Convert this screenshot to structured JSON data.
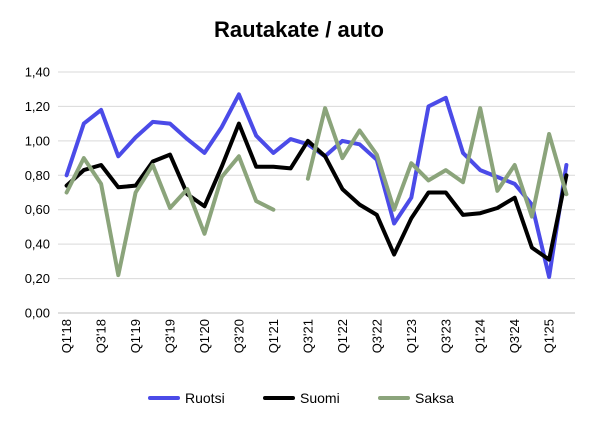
{
  "chart_data": {
    "type": "line",
    "title": "Rautakate / auto",
    "xlabel": "",
    "ylabel": "",
    "ylim": [
      0,
      1.4
    ],
    "ytick_step": 0.2,
    "grid": true,
    "legend_position": "bottom",
    "x": [
      "Q1'18",
      "Q2'18",
      "Q3'18",
      "Q4'18",
      "Q1'19",
      "Q2'19",
      "Q3'19",
      "Q4'19",
      "Q1'20",
      "Q2'20",
      "Q3'20",
      "Q4'20",
      "Q1'21",
      "Q2'21",
      "Q3'21",
      "Q4'21",
      "Q1'22",
      "Q2'22",
      "Q3'22",
      "Q4'22",
      "Q1'23",
      "Q2'23",
      "Q3'23",
      "Q4'23",
      "Q1'24",
      "Q2'24",
      "Q3'24",
      "Q4'24",
      "Q1'25",
      "Q2'25"
    ],
    "x_tick_labels": [
      "Q1'18",
      "Q3'18",
      "Q1'19",
      "Q3'19",
      "Q1'20",
      "Q3'20",
      "Q1'21",
      "Q3'21",
      "Q1'22",
      "Q3'22",
      "Q1'23",
      "Q3'23",
      "Q1'24",
      "Q3'24",
      "Q1'25"
    ],
    "y_tick_labels": [
      "0,00",
      "0,20",
      "0,40",
      "0,60",
      "0,80",
      "1,00",
      "1,20",
      "1,40"
    ],
    "series": [
      {
        "name": "Ruotsi",
        "color": "#4b4be8",
        "values": [
          0.8,
          1.1,
          1.18,
          0.91,
          1.02,
          1.11,
          1.1,
          1.01,
          0.93,
          1.08,
          1.27,
          1.03,
          0.93,
          1.01,
          0.98,
          0.91,
          1.0,
          0.98,
          0.89,
          0.52,
          0.67,
          1.2,
          1.25,
          0.93,
          0.83,
          0.79,
          0.75,
          0.63,
          0.21,
          0.86
        ]
      },
      {
        "name": "Suomi",
        "color": "#000000",
        "values": [
          0.74,
          0.83,
          0.86,
          0.73,
          0.74,
          0.88,
          0.92,
          0.69,
          0.62,
          0.85,
          1.1,
          0.85,
          0.85,
          0.84,
          1.0,
          0.91,
          0.72,
          0.63,
          0.57,
          0.34,
          0.55,
          0.7,
          0.7,
          0.57,
          0.58,
          0.61,
          0.67,
          0.38,
          0.31,
          0.8
        ]
      },
      {
        "name": "Saksa",
        "color": "#8ba47b",
        "values": [
          0.7,
          0.9,
          0.75,
          0.22,
          0.7,
          0.86,
          0.61,
          0.72,
          0.46,
          0.79,
          0.91,
          0.65,
          0.6,
          null,
          0.78,
          1.19,
          0.9,
          1.06,
          0.92,
          0.6,
          0.87,
          0.77,
          0.83,
          0.76,
          1.19,
          0.71,
          0.86,
          0.56,
          1.04,
          0.69
        ]
      }
    ]
  }
}
